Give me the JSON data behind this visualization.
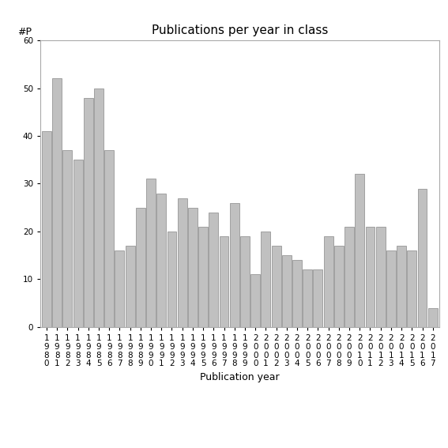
{
  "title": "Publications per year in class",
  "xlabel": "Publication year",
  "ylabel": "#P",
  "years": [
    "1980",
    "1981",
    "1982",
    "1983",
    "1984",
    "1985",
    "1986",
    "1987",
    "1988",
    "1989",
    "1990",
    "1991",
    "1992",
    "1993",
    "1994",
    "1995",
    "1996",
    "1997",
    "1998",
    "1999",
    "2000",
    "2001",
    "2002",
    "2003",
    "2004",
    "2005",
    "2006",
    "2007",
    "2008",
    "2009",
    "2010",
    "2011",
    "2012",
    "2013",
    "2014",
    "2015",
    "2016",
    "2017"
  ],
  "values": [
    41,
    52,
    37,
    35,
    48,
    50,
    37,
    16,
    17,
    25,
    31,
    28,
    20,
    27,
    25,
    21,
    24,
    19,
    26,
    19,
    11,
    20,
    17,
    15,
    14,
    12,
    12,
    19,
    17,
    21,
    32,
    21,
    21,
    16,
    17,
    16,
    29,
    4
  ],
  "bar_color": "#c0c0c0",
  "bar_edgecolor": "#888888",
  "ylim": [
    0,
    60
  ],
  "yticks": [
    0,
    10,
    20,
    30,
    40,
    50,
    60
  ],
  "background_color": "#ffffff",
  "title_fontsize": 11,
  "label_fontsize": 9,
  "tick_fontsize": 7.5
}
